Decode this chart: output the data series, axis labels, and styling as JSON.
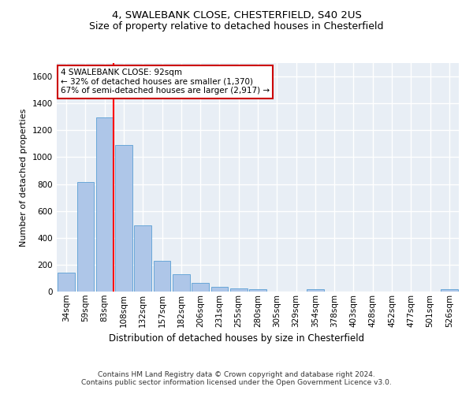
{
  "title_line1": "4, SWALEBANK CLOSE, CHESTERFIELD, S40 2US",
  "title_line2": "Size of property relative to detached houses in Chesterfield",
  "xlabel": "Distribution of detached houses by size in Chesterfield",
  "ylabel": "Number of detached properties",
  "footnote": "Contains HM Land Registry data © Crown copyright and database right 2024.\nContains public sector information licensed under the Open Government Licence v3.0.",
  "bar_labels": [
    "34sqm",
    "59sqm",
    "83sqm",
    "108sqm",
    "132sqm",
    "157sqm",
    "182sqm",
    "206sqm",
    "231sqm",
    "255sqm",
    "280sqm",
    "305sqm",
    "329sqm",
    "354sqm",
    "378sqm",
    "403sqm",
    "428sqm",
    "452sqm",
    "477sqm",
    "501sqm",
    "526sqm"
  ],
  "bar_values": [
    140,
    815,
    1295,
    1090,
    495,
    230,
    130,
    65,
    38,
    25,
    15,
    0,
    0,
    15,
    0,
    0,
    0,
    0,
    0,
    0,
    15
  ],
  "bar_color": "#aec6e8",
  "bar_edge_color": "#5a9fd4",
  "ylim": [
    0,
    1700
  ],
  "yticks": [
    0,
    200,
    400,
    600,
    800,
    1000,
    1200,
    1400,
    1600
  ],
  "property_bin_index": 2,
  "annotation_text": "4 SWALEBANK CLOSE: 92sqm\n← 32% of detached houses are smaller (1,370)\n67% of semi-detached houses are larger (2,917) →",
  "annotation_box_color": "#ffffff",
  "annotation_box_edge_color": "#cc0000",
  "background_color": "#e8eef5",
  "grid_color": "#ffffff",
  "fig_bg_color": "#ffffff",
  "fig_width": 6.0,
  "fig_height": 5.0,
  "title1_fontsize": 9.5,
  "title2_fontsize": 9,
  "ylabel_fontsize": 8,
  "xlabel_fontsize": 8.5,
  "tick_fontsize": 7.5,
  "footnote_fontsize": 6.5
}
